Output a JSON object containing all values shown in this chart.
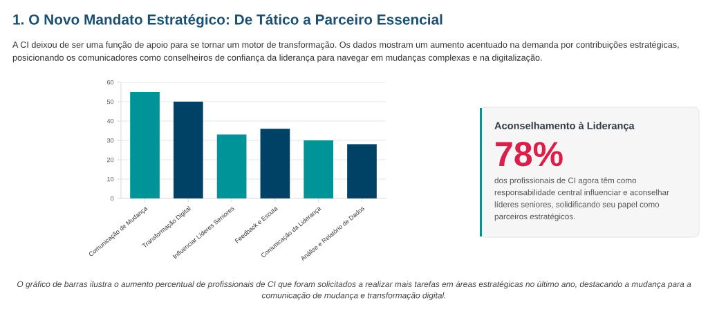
{
  "chart_data": [
    {
      "type": "bar",
      "title": "1. O Novo Mandato Estratégico: De Tático a Parceiro Essencial",
      "subtitle": "A CI deixou de ser uma função de apoio para se tornar um motor de transformação. Os dados mostram um aumento acentuado na demanda por contribuições estratégicas,\nposicionando os comunicadores como conselheiros de confiança da liderança para navegar em mudanças complexas e na digitalização.",
      "categories": [
        "Comunicação de Mudança",
        "Transformação Digital",
        "Influenciar Líderes Seniores",
        "Feedback e Escuta",
        "Comunicação da Liderança",
        "Análise e Relatório de Dados"
      ],
      "values": [
        55,
        50,
        33,
        36,
        30,
        28
      ],
      "colors": [
        "#009498",
        "#004166",
        "#009498",
        "#004166",
        "#009498",
        "#004166"
      ],
      "ylim": [
        0,
        60
      ],
      "yticks": [
        0,
        10,
        20,
        30,
        40,
        50,
        60
      ],
      "grid": "y",
      "legend": false,
      "annotations": [
        "O gráfico de barras ilustra o aumento percentual de profissionais de CI que foram solicitados a realizar mais tarefas em áreas estratégicas no último ano, destacando a mudança para a\ncomunicação de mudança e transformação digital."
      ]
    },
    {
      "type": "other",
      "title": "Aconselhamento à Liderança",
      "annotations": [
        "78%",
        "dos profissionais de CI agora têm como\nresponsabilidade central influenciar e aconselhar\nlíderes seniores, solidificando seu papel como\nparceiros estratégicos."
      ]
    }
  ]
}
